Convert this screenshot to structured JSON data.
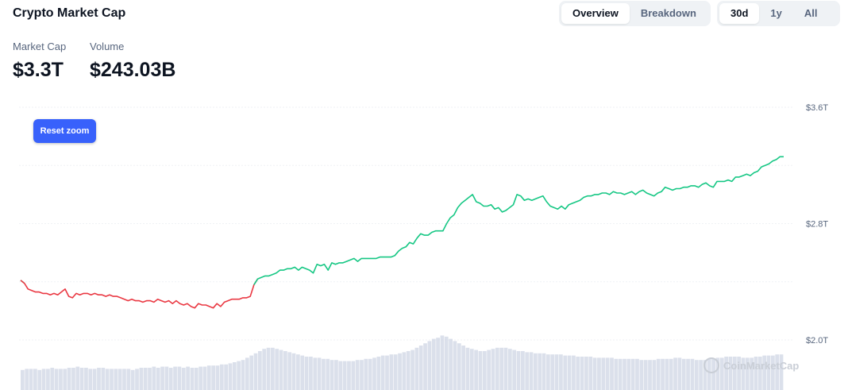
{
  "title": "Crypto Market Cap",
  "view_tabs": [
    {
      "label": "Overview",
      "active": true
    },
    {
      "label": "Breakdown",
      "active": false
    }
  ],
  "range_tabs": [
    {
      "label": "30d",
      "active": true
    },
    {
      "label": "1y",
      "active": false
    },
    {
      "label": "All",
      "active": false
    }
  ],
  "stats": {
    "market_cap_label": "Market Cap",
    "market_cap_value": "$3.3T",
    "volume_label": "Volume",
    "volume_value": "$243.03B"
  },
  "reset_zoom_label": "Reset zoom",
  "watermark": "CoinMarketCap",
  "colors": {
    "up": "#16c784",
    "down": "#ea3943",
    "accent": "#3861fb",
    "volume": "#cfd6e4",
    "grid": "#eff2f5"
  },
  "chart_data": {
    "type": "line",
    "title": "",
    "xlabel": "",
    "ylabel": "",
    "ylim": [
      1.95,
      3.6
    ],
    "y_ticks": [
      {
        "value": 2.0,
        "label": "$2.0T"
      },
      {
        "value": 2.8,
        "label": "$2.8T"
      },
      {
        "value": 3.6,
        "label": "$3.6T"
      }
    ],
    "y_gridlines": [
      2.0,
      2.4,
      2.8,
      3.2,
      3.6
    ],
    "grid": true,
    "baseline": 2.4,
    "unit": "T USD",
    "series": [
      {
        "values": [
          2.41,
          2.39,
          2.35,
          2.34,
          2.33,
          2.33,
          2.32,
          2.32,
          2.31,
          2.32,
          2.31,
          2.33,
          2.35,
          2.3,
          2.29,
          2.32,
          2.31,
          2.32,
          2.32,
          2.31,
          2.32,
          2.31,
          2.31,
          2.3,
          2.31,
          2.3,
          2.3,
          2.29,
          2.28,
          2.27,
          2.28,
          2.27,
          2.27,
          2.26,
          2.27,
          2.27,
          2.26,
          2.28,
          2.27,
          2.26,
          2.27,
          2.25,
          2.27,
          2.25,
          2.24,
          2.25,
          2.23,
          2.22,
          2.25,
          2.24,
          2.24,
          2.23,
          2.22,
          2.25,
          2.23,
          2.26,
          2.27,
          2.28,
          2.28,
          2.28,
          2.29,
          2.29,
          2.3,
          2.38,
          2.42,
          2.43,
          2.44,
          2.44,
          2.45,
          2.46,
          2.48,
          2.48,
          2.49,
          2.49,
          2.5,
          2.48,
          2.5,
          2.49,
          2.48,
          2.46,
          2.52,
          2.51,
          2.52,
          2.48,
          2.53,
          2.52,
          2.53,
          2.53,
          2.54,
          2.55,
          2.56,
          2.54,
          2.56,
          2.56,
          2.56,
          2.56,
          2.56,
          2.57,
          2.57,
          2.57,
          2.57,
          2.58,
          2.61,
          2.63,
          2.64,
          2.67,
          2.66,
          2.7,
          2.73,
          2.72,
          2.72,
          2.74,
          2.75,
          2.75,
          2.75,
          2.8,
          2.84,
          2.86,
          2.91,
          2.94,
          2.96,
          2.98,
          3.0,
          2.95,
          2.94,
          2.92,
          2.92,
          2.93,
          2.9,
          2.91,
          2.88,
          2.89,
          2.91,
          2.93,
          3.0,
          2.99,
          2.96,
          2.97,
          2.96,
          2.97,
          2.98,
          2.99,
          2.95,
          2.92,
          2.91,
          2.9,
          2.92,
          2.9,
          2.93,
          2.94,
          2.95,
          2.96,
          2.98,
          2.99,
          2.99,
          3.0,
          3.0,
          3.01,
          3.01,
          3.0,
          3.02,
          3.01,
          3.01,
          3.0,
          3.01,
          3.02,
          3.0,
          3.02,
          3.03,
          3.01,
          3.0,
          2.99,
          3.01,
          3.02,
          3.05,
          3.04,
          3.03,
          3.04,
          3.04,
          3.05,
          3.05,
          3.06,
          3.06,
          3.05,
          3.07,
          3.08,
          3.06,
          3.05,
          3.09,
          3.09,
          3.09,
          3.1,
          3.09,
          3.12,
          3.12,
          3.13,
          3.14,
          3.13,
          3.15,
          3.16,
          3.19,
          3.2,
          3.21,
          3.23,
          3.24,
          3.26,
          3.26
        ]
      }
    ],
    "volume": [
      0.18,
      0.19,
      0.19,
      0.19,
      0.18,
      0.19,
      0.19,
      0.2,
      0.19,
      0.19,
      0.19,
      0.2,
      0.2,
      0.21,
      0.2,
      0.2,
      0.19,
      0.19,
      0.2,
      0.2,
      0.19,
      0.19,
      0.19,
      0.19,
      0.19,
      0.19,
      0.18,
      0.19,
      0.2,
      0.2,
      0.2,
      0.21,
      0.2,
      0.21,
      0.21,
      0.2,
      0.21,
      0.21,
      0.2,
      0.21,
      0.2,
      0.2,
      0.21,
      0.21,
      0.22,
      0.22,
      0.22,
      0.23,
      0.23,
      0.24,
      0.25,
      0.26,
      0.27,
      0.29,
      0.31,
      0.33,
      0.35,
      0.37,
      0.38,
      0.38,
      0.37,
      0.36,
      0.35,
      0.34,
      0.33,
      0.32,
      0.31,
      0.3,
      0.3,
      0.29,
      0.29,
      0.28,
      0.28,
      0.27,
      0.27,
      0.26,
      0.26,
      0.26,
      0.26,
      0.27,
      0.27,
      0.28,
      0.28,
      0.29,
      0.3,
      0.31,
      0.31,
      0.32,
      0.32,
      0.33,
      0.34,
      0.35,
      0.36,
      0.38,
      0.4,
      0.42,
      0.44,
      0.46,
      0.47,
      0.49,
      0.48,
      0.46,
      0.44,
      0.42,
      0.4,
      0.38,
      0.37,
      0.36,
      0.35,
      0.35,
      0.36,
      0.37,
      0.38,
      0.38,
      0.38,
      0.37,
      0.36,
      0.35,
      0.35,
      0.34,
      0.34,
      0.33,
      0.33,
      0.33,
      0.32,
      0.32,
      0.32,
      0.32,
      0.31,
      0.31,
      0.31,
      0.3,
      0.3,
      0.3,
      0.3,
      0.29,
      0.29,
      0.29,
      0.29,
      0.29,
      0.28,
      0.28,
      0.28,
      0.28,
      0.28,
      0.28,
      0.27,
      0.27,
      0.27,
      0.27,
      0.28,
      0.28,
      0.28,
      0.28,
      0.29,
      0.29,
      0.28,
      0.28,
      0.28,
      0.27,
      0.27,
      0.27,
      0.28,
      0.28,
      0.29,
      0.29,
      0.3,
      0.3,
      0.3,
      0.3,
      0.29,
      0.29,
      0.29,
      0.3,
      0.3,
      0.31,
      0.31,
      0.31,
      0.32,
      0.32
    ]
  }
}
